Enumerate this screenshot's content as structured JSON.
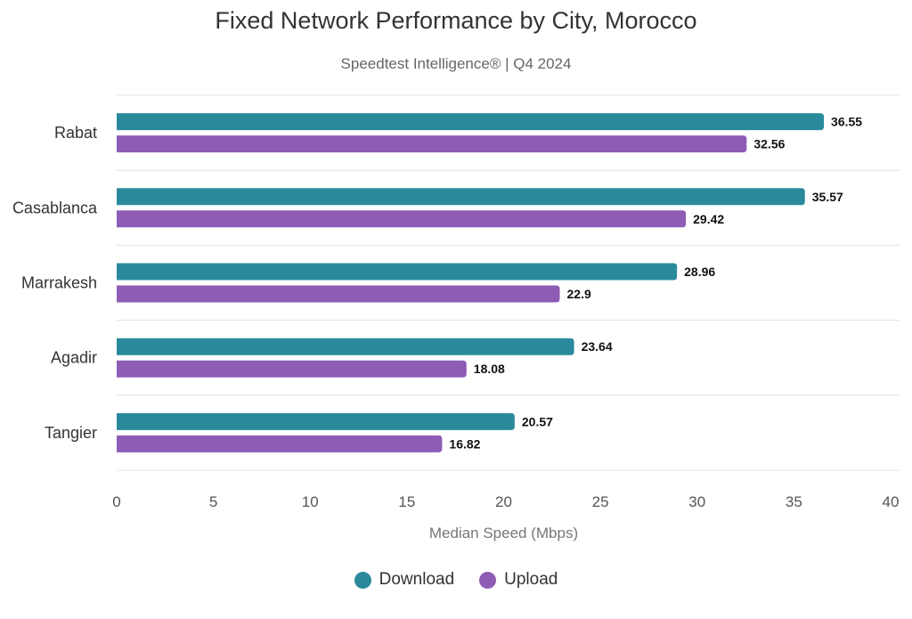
{
  "chart_data": {
    "type": "bar",
    "orientation": "horizontal",
    "title": "Fixed Network Performance by City, Morocco",
    "subtitle": "Speedtest Intelligence® | Q4 2024",
    "xlabel": "Median Speed (Mbps)",
    "ylabel": "",
    "xlim": [
      0,
      40
    ],
    "xticks": [
      0,
      5,
      10,
      15,
      20,
      25,
      30,
      35,
      40
    ],
    "categories": [
      "Rabat",
      "Casablanca",
      "Marrakesh",
      "Agadir",
      "Tangier"
    ],
    "series": [
      {
        "name": "Download",
        "color": "#2a8a9c",
        "values": [
          36.55,
          35.57,
          28.96,
          23.64,
          20.57
        ]
      },
      {
        "name": "Upload",
        "color": "#8e5cb5",
        "values": [
          32.56,
          29.42,
          22.9,
          18.08,
          16.82
        ]
      }
    ],
    "grid": "horizontal separators",
    "legend_position": "bottom-center",
    "data_labels": true
  }
}
